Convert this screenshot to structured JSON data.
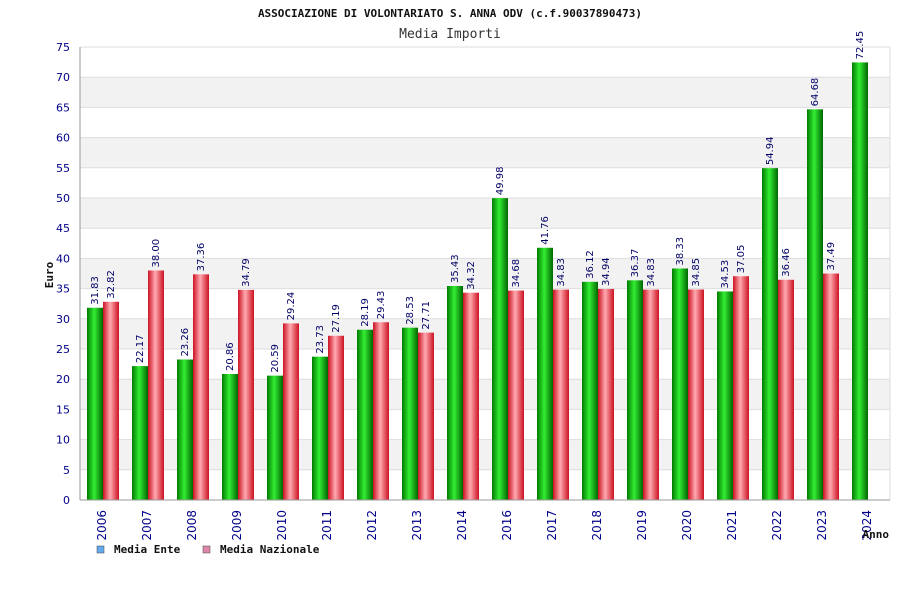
{
  "chart_data": {
    "type": "bar",
    "title": "ASSOCIAZIONE DI VOLONTARIATO S. ANNA ODV (c.f.90037890473)",
    "subtitle": "Media Importi",
    "xlabel": "Anno",
    "ylabel": "Euro",
    "ylim": [
      0,
      75
    ],
    "yticks": [
      0,
      5,
      10,
      15,
      20,
      25,
      30,
      35,
      40,
      45,
      50,
      55,
      60,
      65,
      70,
      75
    ],
    "grid": true,
    "legend_position": "bottom-left",
    "categories": [
      "2006",
      "2007",
      "2008",
      "2009",
      "2010",
      "2011",
      "2012",
      "2013",
      "2014",
      "2016",
      "2017",
      "2018",
      "2019",
      "2020",
      "2021",
      "2022",
      "2023",
      "2024"
    ],
    "series": [
      {
        "name": "Media Ente",
        "color": "#00aa00",
        "legend_color": "#66aaee",
        "values": [
          31.83,
          22.17,
          23.26,
          20.86,
          20.59,
          23.73,
          28.19,
          28.53,
          35.43,
          49.98,
          41.76,
          36.12,
          36.37,
          38.33,
          34.53,
          54.94,
          64.68,
          72.45
        ],
        "labels": [
          "31.83",
          "22.17",
          "23.26",
          "20.86",
          "20.59",
          "23.73",
          "28.19",
          "28.53",
          "35.43",
          "49.98",
          "41.76",
          "36.12",
          "36.37",
          "38.33",
          "34.53",
          "54.94",
          "64.68",
          "72.45"
        ]
      },
      {
        "name": "Media Nazionale",
        "color": "#ee2233",
        "legend_color": "#dd88aa",
        "values": [
          32.82,
          38.0,
          37.36,
          34.79,
          29.24,
          27.19,
          29.43,
          27.71,
          34.32,
          34.68,
          34.83,
          34.94,
          34.83,
          34.85,
          37.05,
          36.46,
          37.49,
          null
        ],
        "labels": [
          "32.82",
          "38.00",
          "37.36",
          "34.79",
          "29.24",
          "27.19",
          "29.43",
          "27.71",
          "34.32",
          "34.68",
          "34.83",
          "34.94",
          "34.83",
          "34.85",
          "37.05",
          "36.46",
          "37.49",
          null
        ]
      }
    ]
  }
}
